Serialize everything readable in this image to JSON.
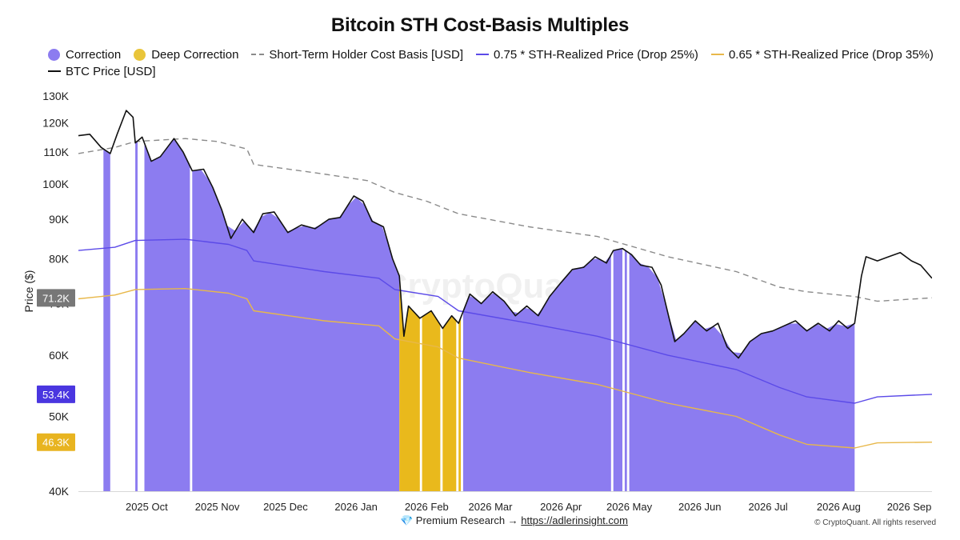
{
  "chart_data": {
    "type": "line",
    "title": "Bitcoin STH Cost-Basis Multiples",
    "ylabel": "Price ($)",
    "xlabel": "",
    "y_scale": "log",
    "ylim": [
      40000,
      130000
    ],
    "xlim": [
      "2025-09-15",
      "2026-09-25"
    ],
    "y_ticks": [
      {
        "value": 40000,
        "label": "40K"
      },
      {
        "value": 50000,
        "label": "50K"
      },
      {
        "value": 60000,
        "label": "60K"
      },
      {
        "value": 70000,
        "label": "70K"
      },
      {
        "value": 80000,
        "label": "80K"
      },
      {
        "value": 90000,
        "label": "90K"
      },
      {
        "value": 100000,
        "label": "100K"
      },
      {
        "value": 110000,
        "label": "110K"
      },
      {
        "value": 120000,
        "label": "120K"
      },
      {
        "value": 130000,
        "label": "130K"
      }
    ],
    "x_ticks": [
      {
        "date": "2025-10-01",
        "label": "2025 Oct"
      },
      {
        "date": "2025-11-01",
        "label": "2025 Nov"
      },
      {
        "date": "2025-12-01",
        "label": "2025 Dec"
      },
      {
        "date": "2026-01-01",
        "label": "2026 Jan"
      },
      {
        "date": "2026-02-01",
        "label": "2026 Feb"
      },
      {
        "date": "2026-03-01",
        "label": "2026 Mar"
      },
      {
        "date": "2026-04-01",
        "label": "2026 Apr"
      },
      {
        "date": "2026-05-01",
        "label": "2026 May"
      },
      {
        "date": "2026-06-01",
        "label": "2026 Jun"
      },
      {
        "date": "2026-07-01",
        "label": "2026 Jul"
      },
      {
        "date": "2026-08-01",
        "label": "2026 Aug"
      },
      {
        "date": "2026-09-01",
        "label": "2026 Sep"
      }
    ],
    "legend_placement": "top",
    "legend": [
      {
        "type": "area",
        "label": "Correction",
        "color": "#8c7cf0"
      },
      {
        "type": "area",
        "label": "Deep Correction",
        "color": "#e9b91c"
      },
      {
        "type": "dashed-line",
        "label": "Short-Term Holder Cost Basis [USD]",
        "color": "#8a8a8a"
      },
      {
        "type": "line",
        "label": "0.75 * STH-Realized Price  (Drop 25%)",
        "color": "#5b4ae8"
      },
      {
        "type": "line",
        "label": "0.65 * STH-Realized Price (Drop 35%)",
        "color": "#e8b84a"
      },
      {
        "type": "line",
        "label": "BTC Price [USD]",
        "color": "#111111"
      }
    ],
    "series": [
      {
        "name": "BTC Price [USD]",
        "color": "#111111",
        "points": [
          [
            "2025-09-15",
            115500
          ],
          [
            "2025-09-20",
            116000
          ],
          [
            "2025-09-25",
            111500
          ],
          [
            "2025-09-29",
            109500
          ],
          [
            "2025-10-02",
            116000
          ],
          [
            "2025-10-06",
            124500
          ],
          [
            "2025-10-09",
            122000
          ],
          [
            "2025-10-10",
            113000
          ],
          [
            "2025-10-13",
            115000
          ],
          [
            "2025-10-17",
            107000
          ],
          [
            "2025-10-21",
            108500
          ],
          [
            "2025-10-27",
            114500
          ],
          [
            "2025-10-31",
            110000
          ],
          [
            "2025-11-04",
            104000
          ],
          [
            "2025-11-09",
            104500
          ],
          [
            "2025-11-13",
            99000
          ],
          [
            "2025-11-17",
            92500
          ],
          [
            "2025-11-21",
            85000
          ],
          [
            "2025-11-26",
            90000
          ],
          [
            "2025-12-01",
            86500
          ],
          [
            "2025-12-05",
            91500
          ],
          [
            "2025-12-10",
            92000
          ],
          [
            "2025-12-16",
            86500
          ],
          [
            "2025-12-22",
            88500
          ],
          [
            "2025-12-28",
            87500
          ],
          [
            "2026-01-03",
            90000
          ],
          [
            "2026-01-08",
            90500
          ],
          [
            "2026-01-14",
            96500
          ],
          [
            "2026-01-18",
            95000
          ],
          [
            "2026-01-22",
            89500
          ],
          [
            "2026-01-27",
            88000
          ],
          [
            "2026-01-31",
            80000
          ],
          [
            "2026-02-03",
            76000
          ],
          [
            "2026-02-05",
            63500
          ],
          [
            "2026-02-07",
            69500
          ],
          [
            "2026-02-12",
            67000
          ],
          [
            "2026-02-17",
            68500
          ],
          [
            "2026-02-22",
            65000
          ],
          [
            "2026-02-26",
            67500
          ],
          [
            "2026-03-01",
            66000
          ],
          [
            "2026-03-06",
            72000
          ],
          [
            "2026-03-11",
            70000
          ],
          [
            "2026-03-16",
            72500
          ],
          [
            "2026-03-21",
            70500
          ],
          [
            "2026-03-26",
            67500
          ],
          [
            "2026-03-31",
            69500
          ],
          [
            "2026-04-05",
            67500
          ],
          [
            "2026-04-10",
            71500
          ],
          [
            "2026-04-15",
            74500
          ],
          [
            "2026-04-20",
            77500
          ],
          [
            "2026-04-25",
            78000
          ],
          [
            "2026-04-30",
            80500
          ],
          [
            "2026-05-05",
            79000
          ],
          [
            "2026-05-08",
            82000
          ],
          [
            "2026-05-12",
            82500
          ],
          [
            "2026-05-16",
            81000
          ],
          [
            "2026-05-20",
            78500
          ],
          [
            "2026-05-25",
            78000
          ],
          [
            "2026-05-29",
            74000
          ],
          [
            "2026-06-01",
            68000
          ],
          [
            "2026-06-04",
            62500
          ],
          [
            "2026-06-08",
            64000
          ],
          [
            "2026-06-13",
            66500
          ],
          [
            "2026-06-18",
            64500
          ],
          [
            "2026-06-23",
            66000
          ],
          [
            "2026-06-27",
            61500
          ],
          [
            "2026-07-02",
            59500
          ],
          [
            "2026-07-07",
            62500
          ],
          [
            "2026-07-12",
            64000
          ],
          [
            "2026-07-17",
            64500
          ],
          [
            "2026-07-22",
            65500
          ],
          [
            "2026-07-27",
            66500
          ],
          [
            "2026-08-01",
            64500
          ],
          [
            "2026-08-06",
            66000
          ],
          [
            "2026-08-11",
            64500
          ],
          [
            "2026-08-15",
            66500
          ],
          [
            "2026-08-19",
            65000
          ],
          [
            "2026-08-22",
            66000
          ],
          [
            "2026-08-25",
            76000
          ],
          [
            "2026-08-27",
            80500
          ],
          [
            "2026-09-01",
            79500
          ],
          [
            "2026-09-06",
            80500
          ],
          [
            "2026-09-11",
            81500
          ],
          [
            "2026-09-16",
            79500
          ],
          [
            "2026-09-20",
            78500
          ],
          [
            "2026-09-25",
            75500
          ]
        ]
      },
      {
        "name": "Short-Term Holder Cost Basis [USD]",
        "color": "#8a8a8a",
        "dashed": true,
        "points": [
          [
            "2025-09-15",
            109500
          ],
          [
            "2025-10-01",
            111500
          ],
          [
            "2025-10-10",
            113500
          ],
          [
            "2025-11-01",
            114500
          ],
          [
            "2025-11-15",
            113500
          ],
          [
            "2025-11-28",
            111000
          ],
          [
            "2025-12-01",
            106000
          ],
          [
            "2026-01-01",
            103000
          ],
          [
            "2026-01-20",
            101000
          ],
          [
            "2026-02-01",
            97500
          ],
          [
            "2026-02-15",
            95000
          ],
          [
            "2026-03-01",
            91500
          ],
          [
            "2026-04-01",
            88000
          ],
          [
            "2026-05-01",
            85500
          ],
          [
            "2026-06-01",
            80500
          ],
          [
            "2026-07-01",
            77000
          ],
          [
            "2026-07-20",
            73500
          ],
          [
            "2026-08-01",
            72500
          ],
          [
            "2026-08-22",
            71500
          ],
          [
            "2026-09-01",
            70500
          ],
          [
            "2026-09-25",
            71200
          ]
        ]
      },
      {
        "name": "0.75 * STH-Realized Price  (Drop 25%)",
        "color": "#5b4ae8",
        "points": [
          [
            "2025-09-15",
            82000
          ],
          [
            "2025-10-01",
            82800
          ],
          [
            "2025-10-10",
            84500
          ],
          [
            "2025-11-01",
            84800
          ],
          [
            "2025-11-20",
            83500
          ],
          [
            "2025-11-28",
            82000
          ],
          [
            "2025-12-01",
            79500
          ],
          [
            "2026-01-01",
            77000
          ],
          [
            "2026-01-25",
            75500
          ],
          [
            "2026-02-01",
            73000
          ],
          [
            "2026-02-20",
            71500
          ],
          [
            "2026-03-01",
            68500
          ],
          [
            "2026-04-01",
            66000
          ],
          [
            "2026-05-01",
            63500
          ],
          [
            "2026-06-01",
            60000
          ],
          [
            "2026-07-01",
            57500
          ],
          [
            "2026-07-20",
            54500
          ],
          [
            "2026-08-01",
            53000
          ],
          [
            "2026-08-22",
            52000
          ],
          [
            "2026-09-01",
            53000
          ],
          [
            "2026-09-25",
            53400
          ]
        ]
      },
      {
        "name": "0.65 * STH-Realized Price (Drop 35%)",
        "color": "#e8b84a",
        "points": [
          [
            "2025-09-15",
            71000
          ],
          [
            "2025-10-01",
            71800
          ],
          [
            "2025-10-10",
            73000
          ],
          [
            "2025-11-01",
            73200
          ],
          [
            "2025-11-20",
            72200
          ],
          [
            "2025-11-28",
            71000
          ],
          [
            "2025-12-01",
            68500
          ],
          [
            "2026-01-01",
            66500
          ],
          [
            "2026-01-25",
            65500
          ],
          [
            "2026-02-01",
            63000
          ],
          [
            "2026-02-20",
            61500
          ],
          [
            "2026-03-01",
            59500
          ],
          [
            "2026-04-01",
            57000
          ],
          [
            "2026-05-01",
            55000
          ],
          [
            "2026-06-01",
            52000
          ],
          [
            "2026-07-01",
            50000
          ],
          [
            "2026-07-20",
            47300
          ],
          [
            "2026-08-01",
            46000
          ],
          [
            "2026-08-22",
            45500
          ],
          [
            "2026-09-01",
            46200
          ],
          [
            "2026-09-25",
            46300
          ]
        ]
      }
    ],
    "correction_regions": [
      [
        "2025-09-26",
        "2025-09-29"
      ],
      [
        "2025-10-10",
        "2025-10-11"
      ],
      [
        "2025-10-14",
        "2025-11-03"
      ],
      [
        "2025-11-04",
        "2026-02-03"
      ],
      [
        "2026-03-03",
        "2026-05-07"
      ],
      [
        "2026-05-08",
        "2026-05-12"
      ],
      [
        "2026-05-13",
        "2026-05-14"
      ],
      [
        "2026-05-15",
        "2026-08-22"
      ]
    ],
    "deep_correction_regions": [
      [
        "2026-02-03",
        "2026-02-12"
      ],
      [
        "2026-02-13",
        "2026-02-21"
      ],
      [
        "2026-02-22",
        "2026-02-28"
      ],
      [
        "2026-03-01",
        "2026-03-02"
      ]
    ],
    "axis_badges": [
      {
        "value": 71200,
        "label": "71.2K",
        "color": "#777777"
      },
      {
        "value": 53400,
        "label": "53.4K",
        "color": "#4a36e0"
      },
      {
        "value": 46300,
        "label": "46.3K",
        "color": "#e8b420"
      }
    ],
    "watermark": "CryptoQuant"
  },
  "footer": {
    "premium_prefix": "💎 Premium Research → ",
    "premium_link": "https://adlerinsight.com",
    "copyright": "© CryptoQuant. All rights reserved"
  }
}
